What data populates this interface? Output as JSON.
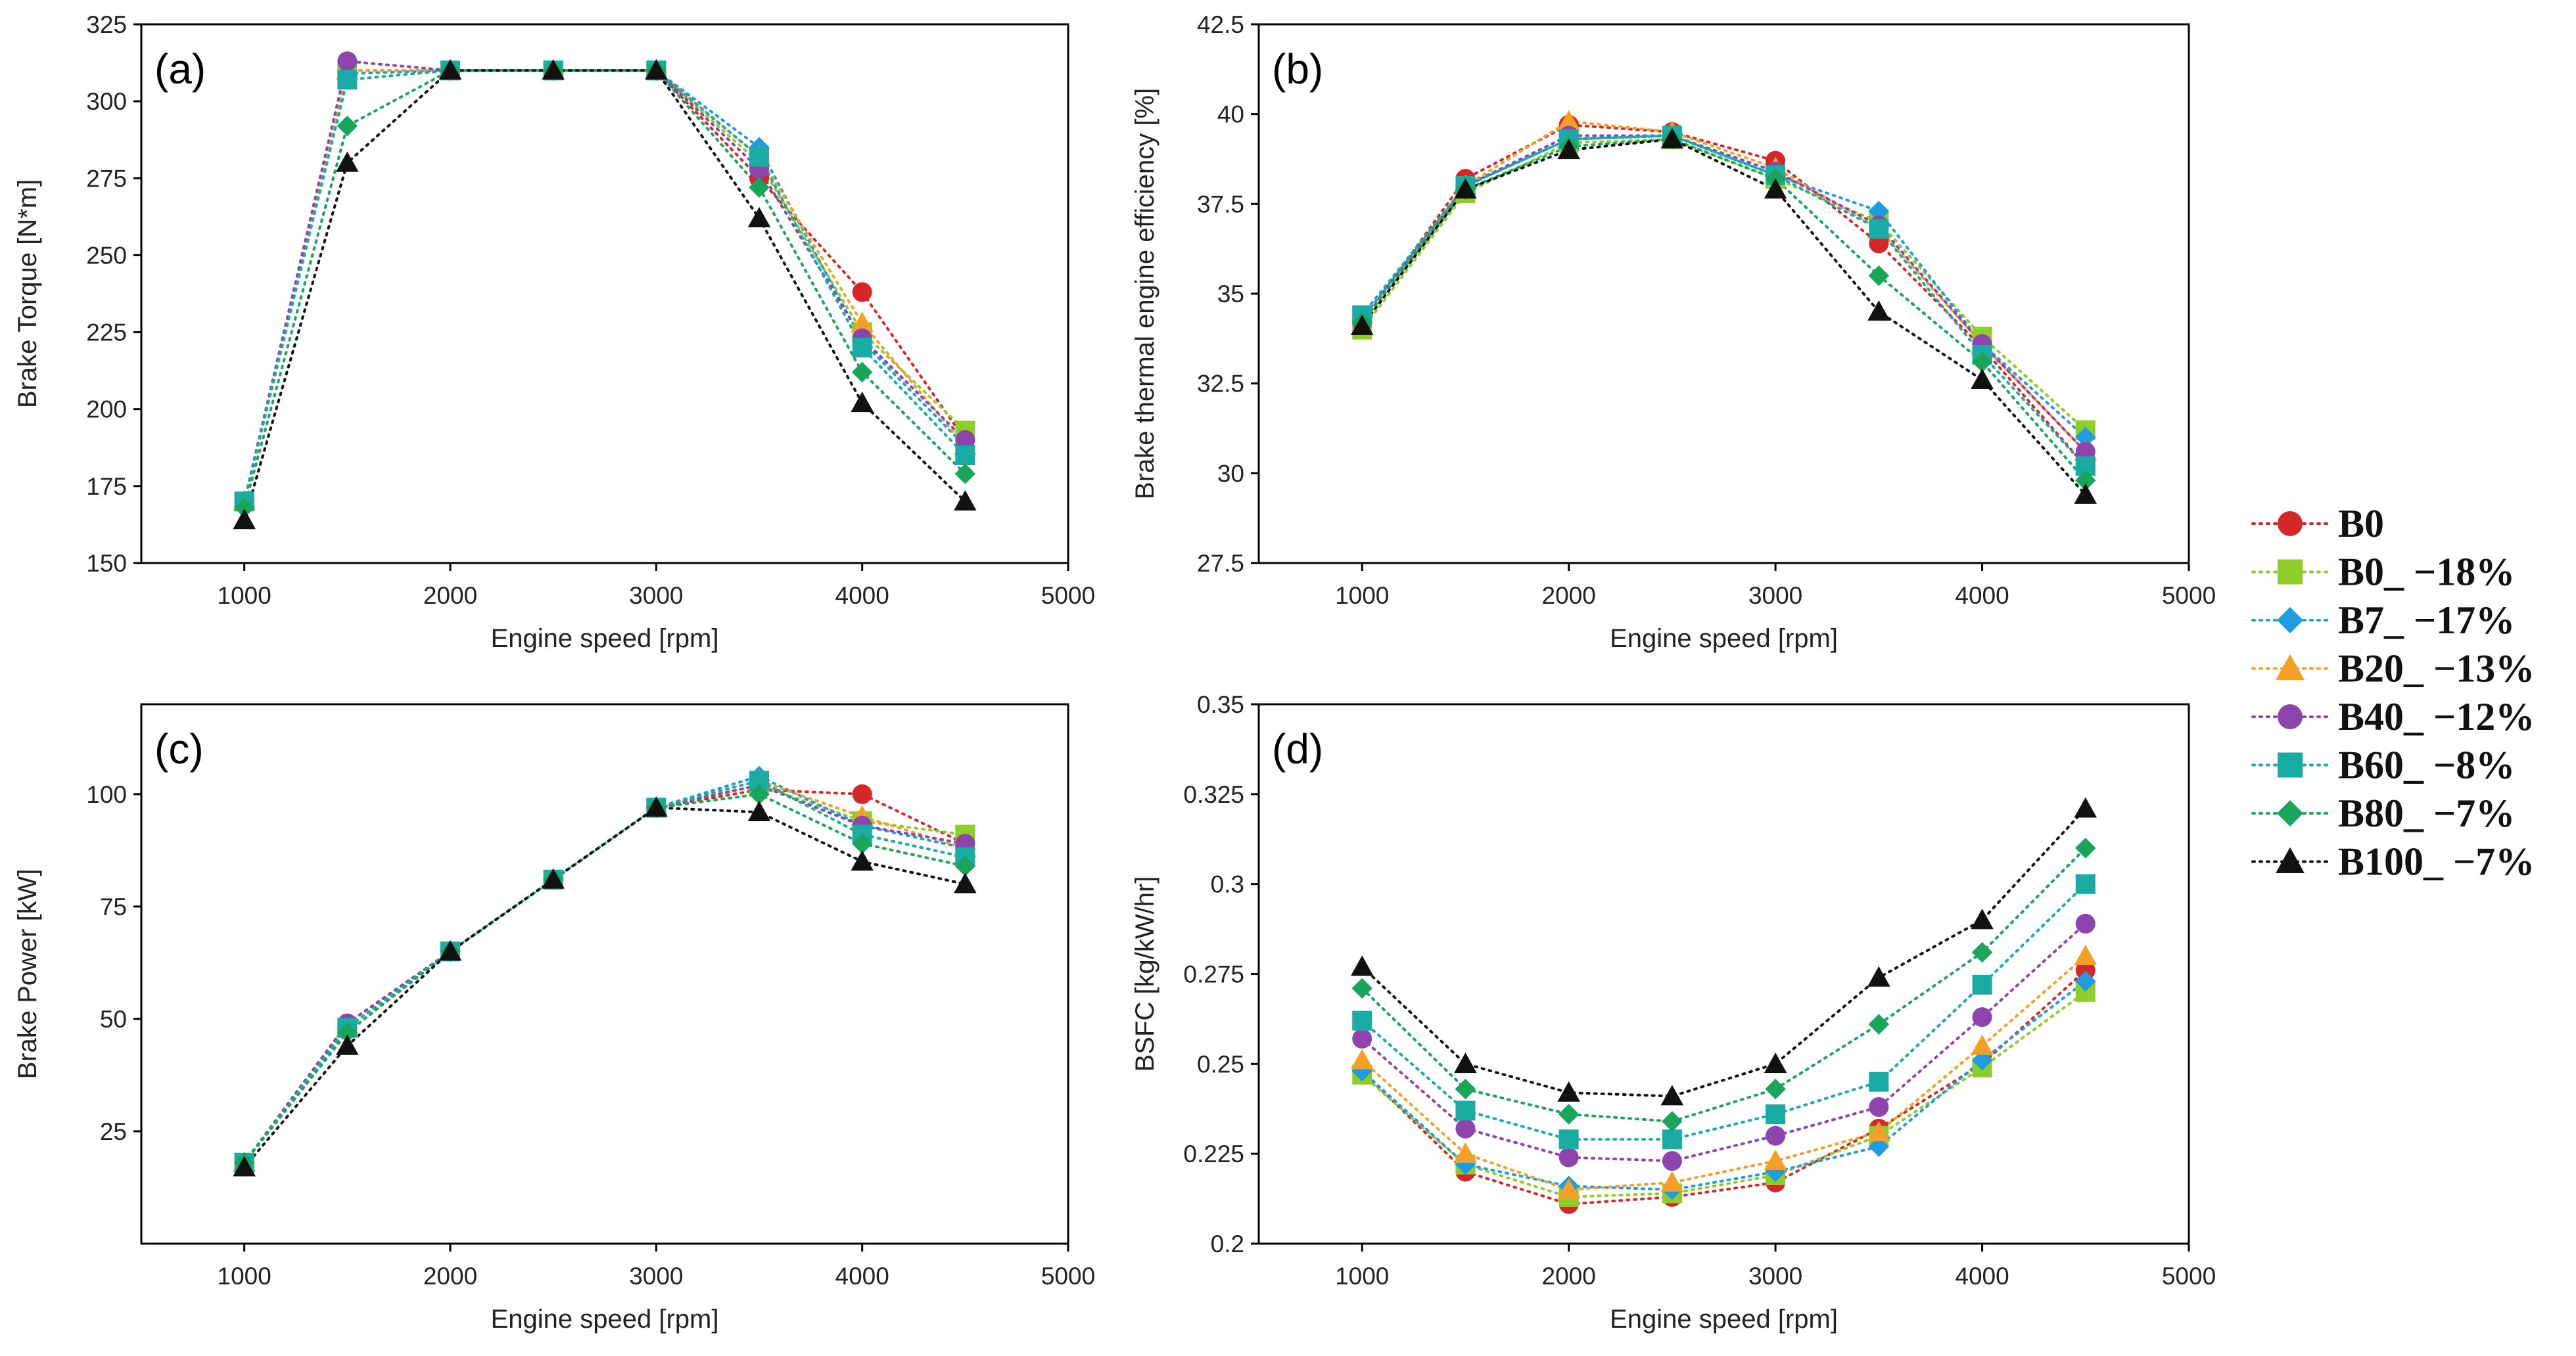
{
  "chart_data": [
    {
      "type": "line",
      "panel_label": "(a)",
      "title": "",
      "xlabel": "Engine speed [rpm]",
      "ylabel": "Brake Torque [N*m]",
      "xlim": [
        500,
        5000
      ],
      "ylim": [
        150,
        325
      ],
      "xticks": [
        1000,
        2000,
        3000,
        4000,
        5000
      ],
      "yticks": [
        150,
        175,
        200,
        225,
        250,
        275,
        300,
        325
      ],
      "x": [
        1000,
        1500,
        2000,
        2500,
        3000,
        3500,
        4000,
        4500
      ],
      "series": [
        {
          "name": "B0",
          "values": [
            170,
            310,
            310,
            310,
            310,
            275,
            238,
            190
          ]
        },
        {
          "name": "B0_ −18%",
          "values": [
            170,
            309,
            310,
            310,
            310,
            280,
            225,
            193
          ]
        },
        {
          "name": "B7_ −17%",
          "values": [
            170,
            309,
            310,
            310,
            310,
            285,
            222,
            188
          ]
        },
        {
          "name": "B20_ −13%",
          "values": [
            170,
            310,
            310,
            310,
            310,
            282,
            228,
            188
          ]
        },
        {
          "name": "B40_ −12%",
          "values": [
            170,
            313,
            310,
            310,
            310,
            278,
            223,
            190
          ]
        },
        {
          "name": "B60_ −8%",
          "values": [
            170,
            307,
            310,
            310,
            310,
            282,
            220,
            185
          ]
        },
        {
          "name": "B80_ −7%",
          "values": [
            168,
            292,
            310,
            310,
            310,
            272,
            212,
            179
          ]
        },
        {
          "name": "B100_ −7%",
          "values": [
            164,
            280,
            310,
            310,
            310,
            262,
            202,
            170
          ]
        }
      ]
    },
    {
      "type": "line",
      "panel_label": "(b)",
      "title": "",
      "xlabel": "Engine speed [rpm]",
      "ylabel": "Brake thermal engine efficiency [%]",
      "xlim": [
        500,
        5000
      ],
      "ylim": [
        27.5,
        42.5
      ],
      "xticks": [
        1000,
        2000,
        3000,
        4000,
        5000
      ],
      "yticks": [
        27.5,
        30,
        32.5,
        35,
        37.5,
        40,
        42.5
      ],
      "ytick_labels": [
        "27.5",
        "30",
        "32.5",
        "35",
        "37.5",
        "40",
        "42.5"
      ],
      "x": [
        1000,
        1500,
        2000,
        2500,
        3000,
        3500,
        4000,
        4500
      ],
      "series": [
        {
          "name": "B0",
          "values": [
            34.2,
            38.2,
            39.7,
            39.5,
            38.7,
            36.4,
            33.5,
            30.2
          ]
        },
        {
          "name": "B0_ −18%",
          "values": [
            34.0,
            37.8,
            39.2,
            39.3,
            38.2,
            37.0,
            33.8,
            31.2
          ]
        },
        {
          "name": "B7_ −17%",
          "values": [
            34.3,
            38.0,
            39.3,
            39.4,
            38.3,
            37.3,
            33.6,
            31.0
          ]
        },
        {
          "name": "B20_ −13%",
          "values": [
            34.1,
            38.0,
            39.8,
            39.5,
            38.5,
            36.8,
            33.6,
            30.6
          ]
        },
        {
          "name": "B40_ −12%",
          "values": [
            34.2,
            38.0,
            39.4,
            39.4,
            38.4,
            36.9,
            33.6,
            30.6
          ]
        },
        {
          "name": "B60_ −8%",
          "values": [
            34.4,
            38.0,
            39.3,
            39.4,
            38.3,
            36.8,
            33.3,
            30.2
          ]
        },
        {
          "name": "B80_ −7%",
          "values": [
            34.2,
            37.9,
            39.1,
            39.3,
            38.2,
            35.5,
            33.1,
            29.8
          ]
        },
        {
          "name": "B100_ −7%",
          "values": [
            34.1,
            37.9,
            39.0,
            39.3,
            37.9,
            34.5,
            32.6,
            29.4
          ]
        }
      ]
    },
    {
      "type": "line",
      "panel_label": "(c)",
      "title": "",
      "xlabel": "Engine speed [rpm]",
      "ylabel": "Brake Power [kW]",
      "xlim": [
        500,
        5000
      ],
      "ylim": [
        0,
        120
      ],
      "xticks": [
        1000,
        2000,
        3000,
        4000,
        5000
      ],
      "yticks": [
        25,
        50,
        75,
        100
      ],
      "x": [
        1000,
        1500,
        2000,
        2500,
        3000,
        3500,
        4000,
        4500
      ],
      "series": [
        {
          "name": "B0",
          "values": [
            18,
            49,
            65,
            81,
            97,
            101,
            100,
            89
          ]
        },
        {
          "name": "B0_ −18%",
          "values": [
            18,
            48,
            65,
            81,
            97,
            102,
            94,
            91
          ]
        },
        {
          "name": "B7_ −17%",
          "values": [
            18,
            48,
            65,
            81,
            97,
            104,
            93,
            88
          ]
        },
        {
          "name": "B20_ −13%",
          "values": [
            18,
            48,
            65,
            81,
            97,
            103,
            95,
            88
          ]
        },
        {
          "name": "B40_ −12%",
          "values": [
            18,
            49,
            65,
            81,
            97,
            102,
            93,
            89
          ]
        },
        {
          "name": "B60_ −8%",
          "values": [
            18,
            48,
            65,
            81,
            97,
            103,
            91,
            86
          ]
        },
        {
          "name": "B80_ −7%",
          "values": [
            18,
            47,
            65,
            81,
            97,
            100,
            89,
            84
          ]
        },
        {
          "name": "B100_ −7%",
          "values": [
            17,
            44,
            65,
            81,
            97,
            96,
            85,
            80
          ]
        }
      ]
    },
    {
      "type": "line",
      "panel_label": "(d)",
      "title": "",
      "xlabel": "Engine speed [rpm]",
      "ylabel": "BSFC [kg/kW/hr]",
      "xlim": [
        500,
        5000
      ],
      "ylim": [
        0.2,
        0.35
      ],
      "xticks": [
        1000,
        2000,
        3000,
        4000,
        5000
      ],
      "yticks": [
        0.2,
        0.225,
        0.25,
        0.275,
        0.3,
        0.325,
        0.35
      ],
      "ytick_labels": [
        "0.2",
        "0.225",
        "0.25",
        "0.275",
        "0.3",
        "0.325",
        "0.35"
      ],
      "x": [
        1000,
        1500,
        2000,
        2500,
        3000,
        3500,
        4000,
        4500
      ],
      "series": [
        {
          "name": "B0",
          "values": [
            0.248,
            0.22,
            0.211,
            0.213,
            0.217,
            0.232,
            0.25,
            0.276
          ]
        },
        {
          "name": "B0_ −18%",
          "values": [
            0.247,
            0.222,
            0.213,
            0.214,
            0.219,
            0.23,
            0.249,
            0.27
          ]
        },
        {
          "name": "B7_ −17%",
          "values": [
            0.248,
            0.222,
            0.216,
            0.215,
            0.22,
            0.227,
            0.251,
            0.273
          ]
        },
        {
          "name": "B20_ −13%",
          "values": [
            0.251,
            0.225,
            0.215,
            0.217,
            0.223,
            0.231,
            0.255,
            0.28
          ]
        },
        {
          "name": "B40_ −12%",
          "values": [
            0.257,
            0.232,
            0.224,
            0.223,
            0.23,
            0.238,
            0.263,
            0.289
          ]
        },
        {
          "name": "B60_ −8%",
          "values": [
            0.262,
            0.237,
            0.229,
            0.229,
            0.236,
            0.245,
            0.272,
            0.3
          ]
        },
        {
          "name": "B80_ −7%",
          "values": [
            0.271,
            0.243,
            0.236,
            0.234,
            0.243,
            0.261,
            0.281,
            0.31
          ]
        },
        {
          "name": "B100_ −7%",
          "values": [
            0.277,
            0.25,
            0.242,
            0.241,
            0.25,
            0.274,
            0.29,
            0.321
          ]
        }
      ]
    }
  ],
  "legend": {
    "placement": "right",
    "entries": [
      {
        "name": "B0",
        "color": "#d62728",
        "marker": "circle"
      },
      {
        "name": "B0_ −18%",
        "color": "#8fce2a",
        "marker": "square"
      },
      {
        "name": "B7_ −17%",
        "color": "#1f9be0",
        "marker": "diamond"
      },
      {
        "name": "B20_ −13%",
        "color": "#f4a028",
        "marker": "triangle"
      },
      {
        "name": "B40_ −12%",
        "color": "#8e44ad",
        "marker": "circle"
      },
      {
        "name": "B60_ −8%",
        "color": "#1aaba5",
        "marker": "square"
      },
      {
        "name": "B80_ −7%",
        "color": "#1aa55c",
        "marker": "diamond"
      },
      {
        "name": "B100_ −7%",
        "color": "#111111",
        "marker": "triangle"
      }
    ]
  }
}
